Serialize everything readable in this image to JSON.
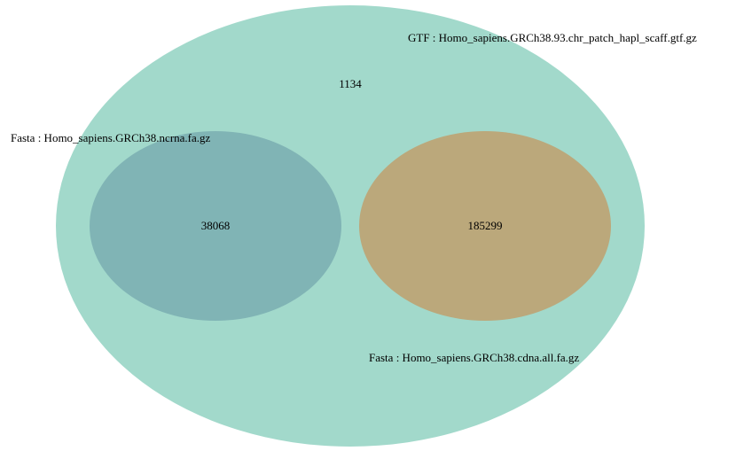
{
  "sets": [
    {
      "label": "GTF : Homo_sapiens.GRCh38.93.chr_patch_hapl_scaff.gtf.gz",
      "count": 1134
    },
    {
      "label": "Fasta : Homo_sapiens.GRCh38.ncrna.fa.gz",
      "count": 38068
    },
    {
      "label": "Fasta : Homo_sapiens.GRCh38.cdna.all.fa.gz",
      "count": 185299
    }
  ]
}
